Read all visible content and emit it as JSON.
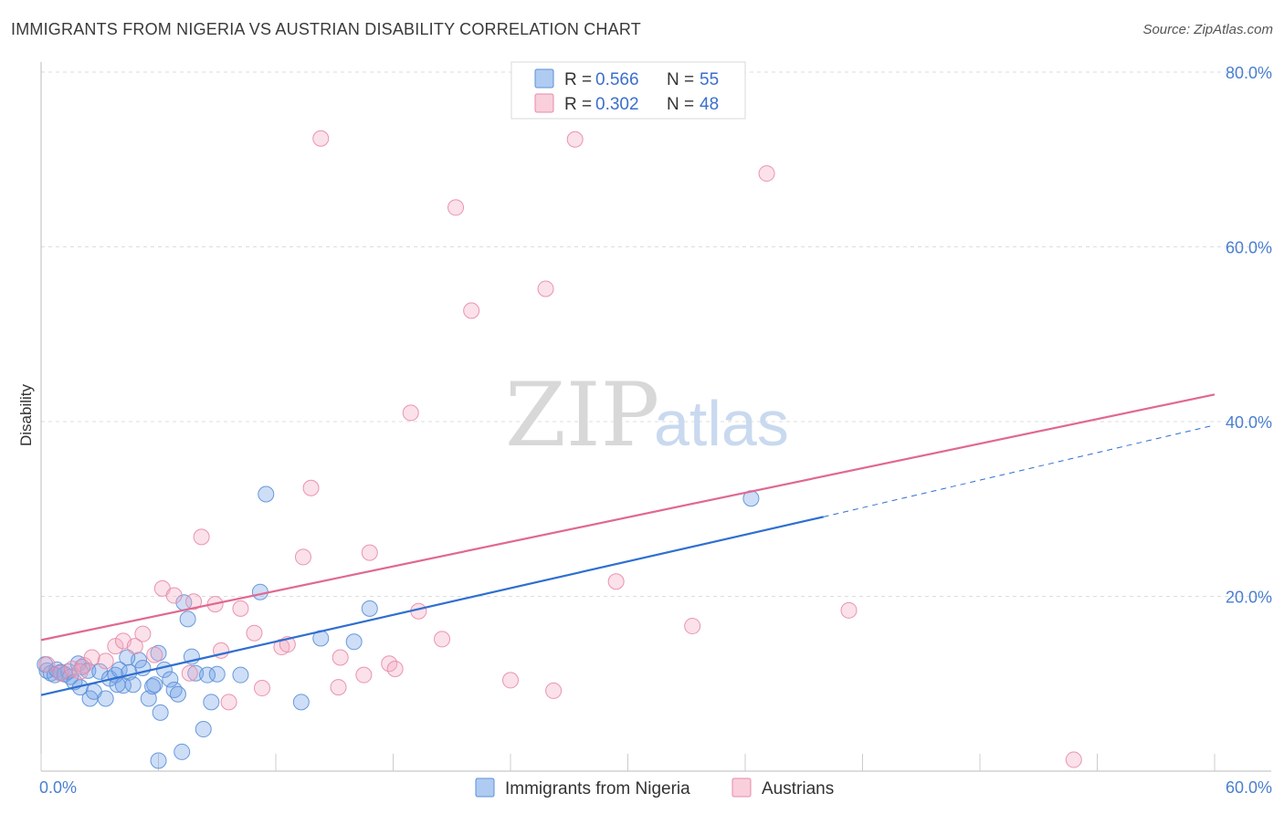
{
  "title": "IMMIGRANTS FROM NIGERIA VS AUSTRIAN DISABILITY CORRELATION CHART",
  "source": "Source: ZipAtlas.com",
  "watermark": {
    "left": "ZIP",
    "right": "atlas"
  },
  "chart_data": {
    "type": "scatter",
    "xlabel": "",
    "ylabel": "Disability",
    "xlim": [
      0,
      60
    ],
    "ylim": [
      0,
      80
    ],
    "x_tick_labels": [
      "0.0%",
      "60.0%"
    ],
    "y_ticks": [
      20,
      40,
      60,
      80
    ],
    "y_tick_labels": [
      "20.0%",
      "40.0%",
      "60.0%",
      "80.0%"
    ],
    "grid": true,
    "legend_position": "top-center",
    "series": [
      {
        "name": "Immigrants from Nigeria",
        "color": "#6fa0e6",
        "stroke": "#5b8fd9",
        "line_color": "#2f6fd0",
        "R_label": "R = ",
        "R": "0.566",
        "N_label": "N = ",
        "N": "55",
        "trend": {
          "x0": 0,
          "y0": 8.7,
          "x1": 40,
          "y1": 29.1,
          "dash_to_x": 60,
          "dash_to_y": 39.6
        },
        "points": [
          [
            0.3,
            11.5
          ],
          [
            0.5,
            11.2
          ],
          [
            0.7,
            11.0
          ],
          [
            0.8,
            11.6
          ],
          [
            1.0,
            11.3
          ],
          [
            1.2,
            11.1
          ],
          [
            1.4,
            11.4
          ],
          [
            1.5,
            10.8
          ],
          [
            1.7,
            10.2
          ],
          [
            1.9,
            12.3
          ],
          [
            2.1,
            11.9
          ],
          [
            2.4,
            11.5
          ],
          [
            2.5,
            8.3
          ],
          [
            2.7,
            9.1
          ],
          [
            3.0,
            11.4
          ],
          [
            3.3,
            8.3
          ],
          [
            3.5,
            10.6
          ],
          [
            3.8,
            11.0
          ],
          [
            4.0,
            11.6
          ],
          [
            4.2,
            9.8
          ],
          [
            4.5,
            11.3
          ],
          [
            4.7,
            9.9
          ],
          [
            5.0,
            12.7
          ],
          [
            5.2,
            11.8
          ],
          [
            5.5,
            8.3
          ],
          [
            5.8,
            9.9
          ],
          [
            6.0,
            13.5
          ],
          [
            6.3,
            11.6
          ],
          [
            6.6,
            10.5
          ],
          [
            6.8,
            9.3
          ],
          [
            7.0,
            8.8
          ],
          [
            7.3,
            19.3
          ],
          [
            7.5,
            17.4
          ],
          [
            7.7,
            13.1
          ],
          [
            7.9,
            11.2
          ],
          [
            8.5,
            11.0
          ],
          [
            8.7,
            7.9
          ],
          [
            9.0,
            11.1
          ],
          [
            10.2,
            11.0
          ],
          [
            11.2,
            20.5
          ],
          [
            11.5,
            31.7
          ],
          [
            13.3,
            7.9
          ],
          [
            14.3,
            15.2
          ],
          [
            16.0,
            14.8
          ],
          [
            16.8,
            18.6
          ],
          [
            6.1,
            6.7
          ],
          [
            7.2,
            2.2
          ],
          [
            8.3,
            4.8
          ],
          [
            6.0,
            1.2
          ],
          [
            5.7,
            9.7
          ],
          [
            3.9,
            9.9
          ],
          [
            2.0,
            9.6
          ],
          [
            0.2,
            12.2
          ],
          [
            36.3,
            31.2
          ],
          [
            4.4,
            13.0
          ]
        ]
      },
      {
        "name": "Austrians",
        "color": "#f4a8c0",
        "stroke": "#e88aa8",
        "line_color": "#e06892",
        "R_label": "R = ",
        "R": "0.302",
        "N_label": "N = ",
        "N": "48",
        "trend": {
          "x0": 0,
          "y0": 15.0,
          "x1": 60,
          "y1": 43.1
        },
        "points": [
          [
            0.3,
            12.2
          ],
          [
            1.0,
            11.2
          ],
          [
            1.6,
            11.7
          ],
          [
            2.2,
            12.1
          ],
          [
            2.6,
            13.0
          ],
          [
            3.3,
            12.6
          ],
          [
            3.8,
            14.3
          ],
          [
            4.2,
            14.9
          ],
          [
            4.8,
            14.3
          ],
          [
            5.2,
            15.7
          ],
          [
            5.8,
            13.3
          ],
          [
            6.2,
            20.9
          ],
          [
            6.8,
            20.1
          ],
          [
            7.6,
            11.2
          ],
          [
            7.8,
            19.4
          ],
          [
            8.2,
            26.8
          ],
          [
            8.9,
            19.1
          ],
          [
            9.2,
            13.8
          ],
          [
            9.6,
            7.9
          ],
          [
            10.2,
            18.6
          ],
          [
            10.9,
            15.8
          ],
          [
            11.3,
            9.5
          ],
          [
            12.3,
            14.2
          ],
          [
            12.6,
            14.5
          ],
          [
            13.4,
            24.5
          ],
          [
            13.8,
            32.4
          ],
          [
            14.3,
            72.4
          ],
          [
            15.2,
            9.6
          ],
          [
            15.3,
            13.0
          ],
          [
            16.5,
            11.0
          ],
          [
            16.8,
            25.0
          ],
          [
            17.8,
            12.3
          ],
          [
            18.1,
            11.7
          ],
          [
            18.9,
            41.0
          ],
          [
            19.3,
            18.3
          ],
          [
            20.5,
            15.1
          ],
          [
            21.2,
            64.5
          ],
          [
            22.0,
            52.7
          ],
          [
            24.0,
            10.4
          ],
          [
            25.8,
            55.2
          ],
          [
            26.2,
            9.2
          ],
          [
            27.3,
            72.3
          ],
          [
            29.4,
            21.7
          ],
          [
            33.3,
            16.6
          ],
          [
            37.1,
            68.4
          ],
          [
            41.3,
            18.4
          ],
          [
            52.8,
            1.3
          ],
          [
            2.0,
            11.4
          ]
        ]
      }
    ]
  }
}
